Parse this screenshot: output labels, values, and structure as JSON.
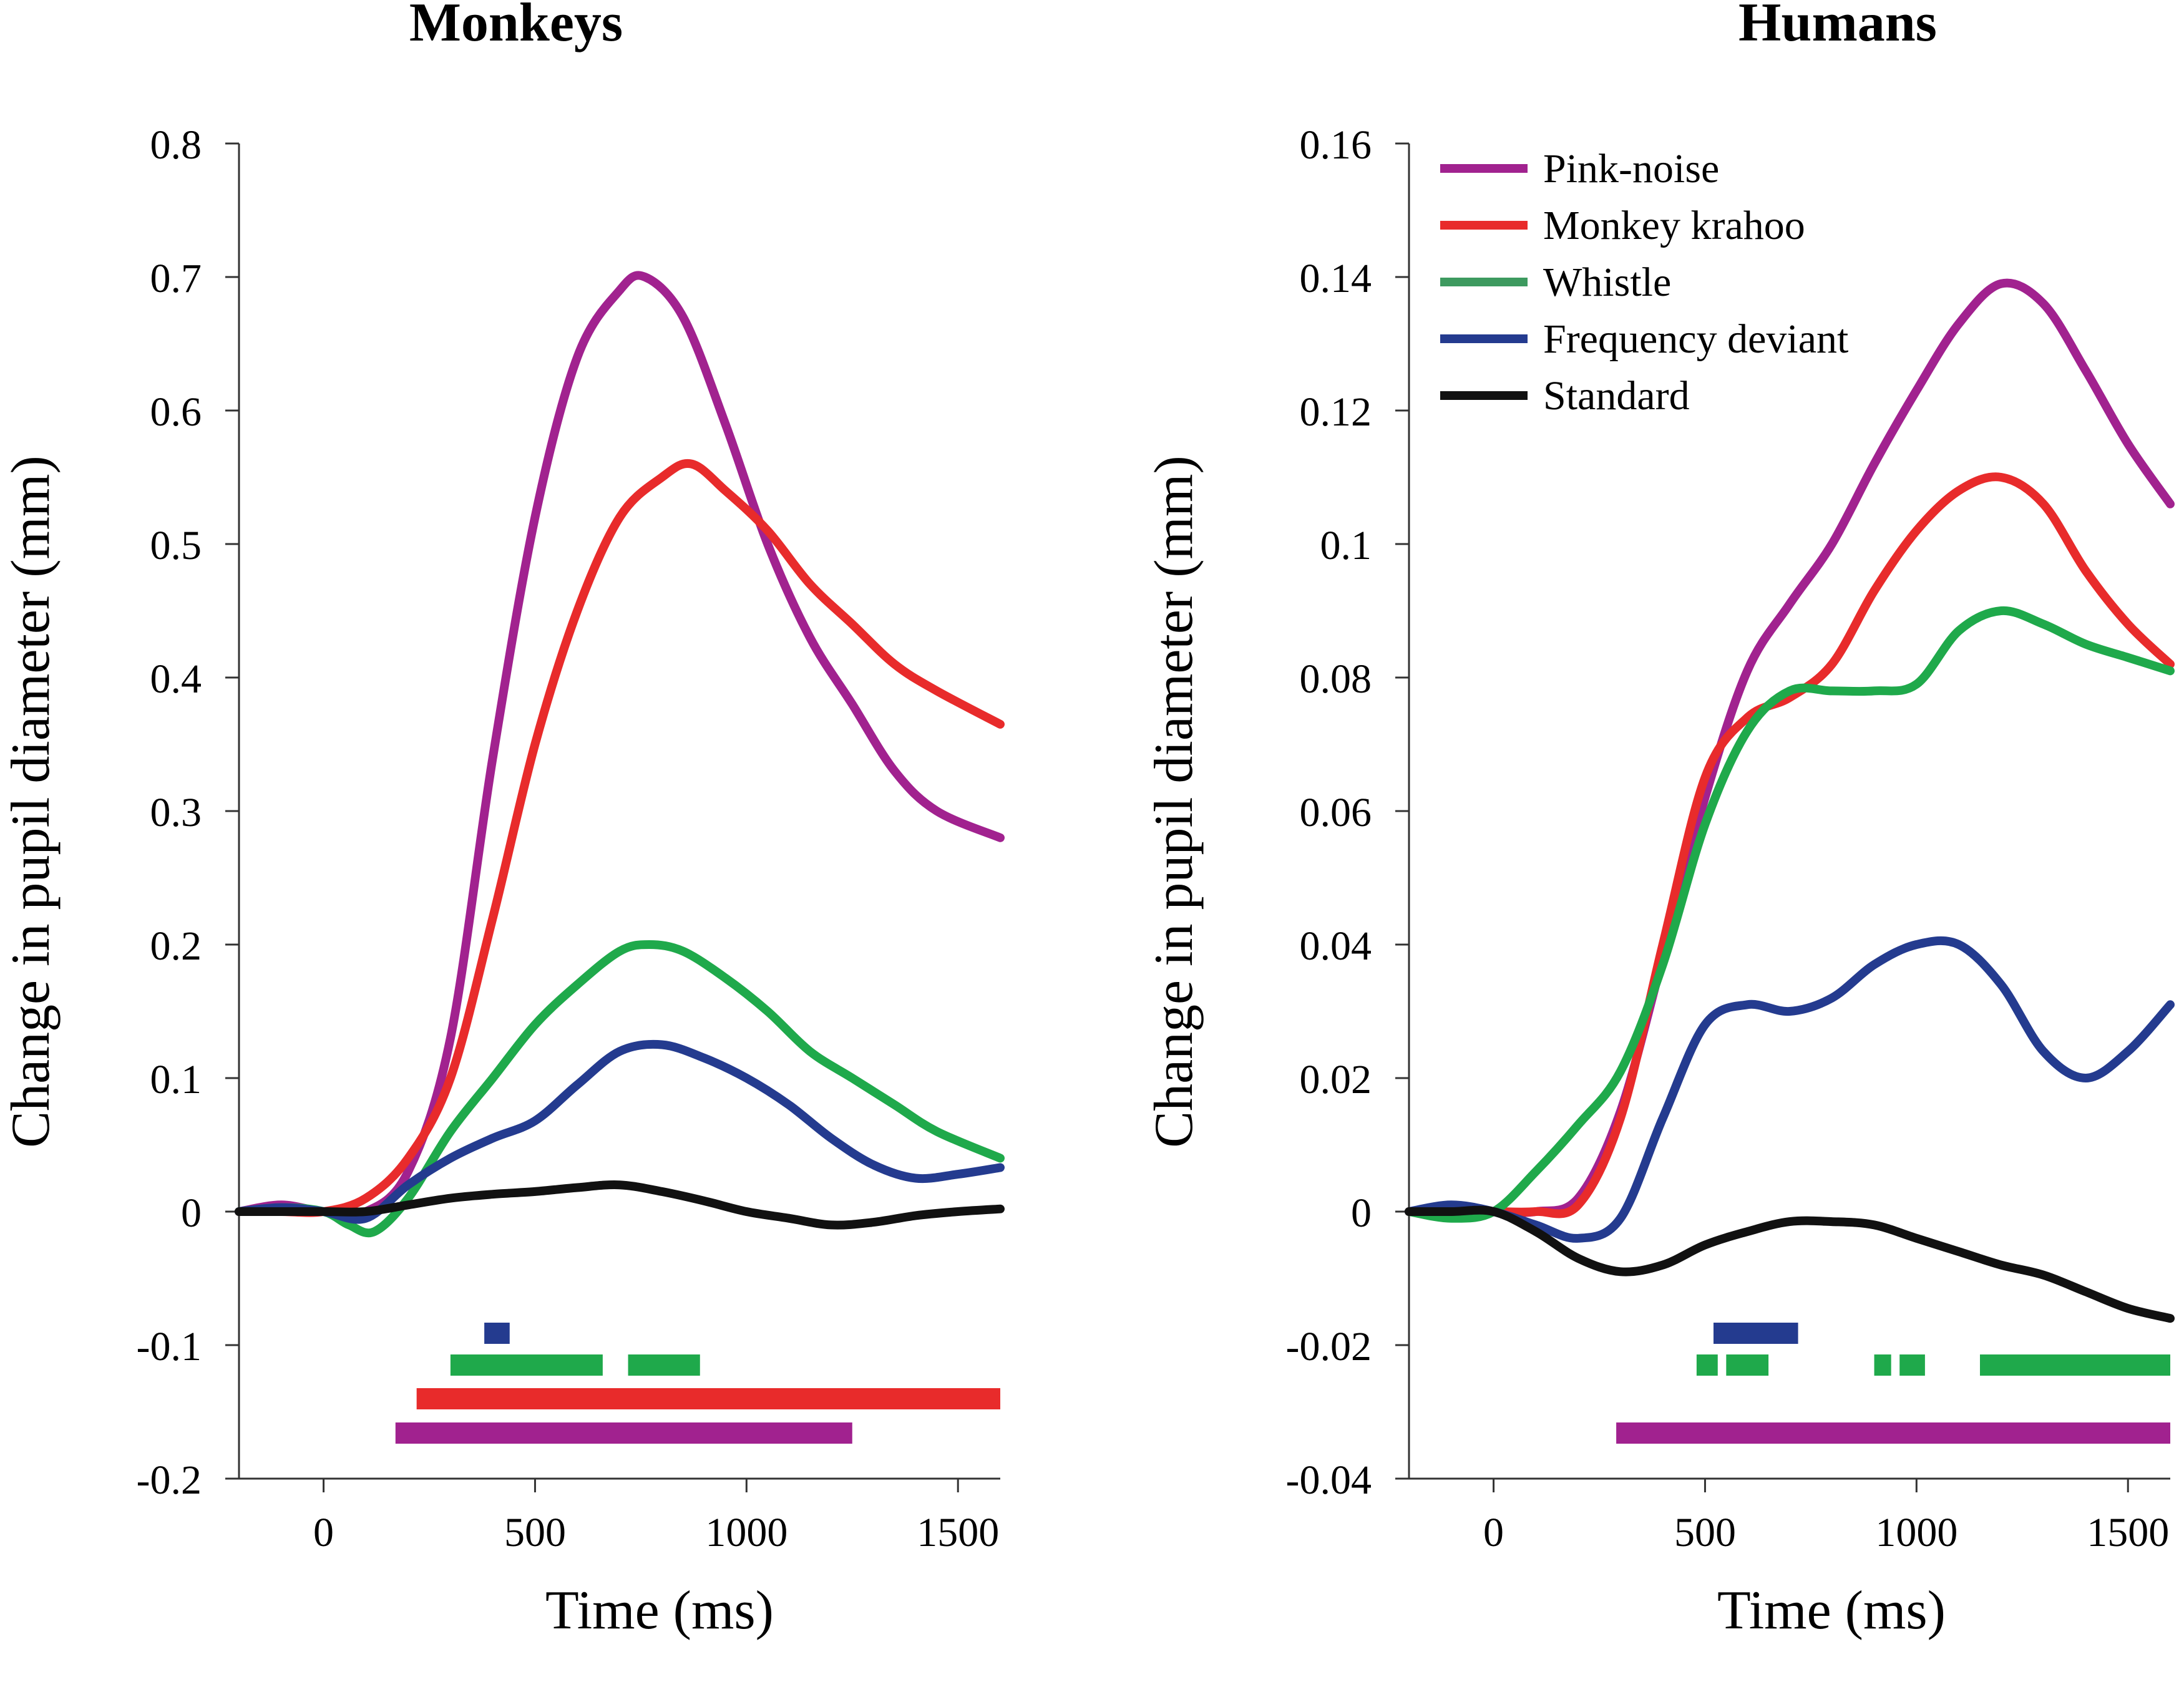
{
  "chart_data": [
    {
      "type": "line",
      "title": "Monkeys",
      "xlabel": "Time (ms)",
      "ylabel": "Change in pupil diameter (mm)",
      "xlim": [
        -200,
        1600
      ],
      "ylim": [
        -0.2,
        0.8
      ],
      "xticks": [
        0,
        500,
        1000,
        1500
      ],
      "xtick_labels": [
        "0",
        "500",
        "1000",
        "1500"
      ],
      "yticks": [
        -0.2,
        -0.1,
        0,
        0.1,
        0.2,
        0.3,
        0.4,
        0.5,
        0.6,
        0.7,
        0.8
      ],
      "ytick_labels": [
        "-0.2",
        "-0.1",
        "0",
        "0.1",
        "0.2",
        "0.3",
        "0.4",
        "0.5",
        "0.6",
        "0.7",
        "0.8"
      ],
      "series": [
        {
          "name": "Pink-noise",
          "color": "#a1228f",
          "x": [
            -200,
            -100,
            0,
            100,
            200,
            300,
            400,
            500,
            600,
            700,
            760,
            850,
            950,
            1050,
            1150,
            1250,
            1350,
            1450,
            1600
          ],
          "y": [
            0,
            0.005,
            0,
            0,
            0.03,
            0.13,
            0.34,
            0.52,
            0.64,
            0.69,
            0.7,
            0.67,
            0.59,
            0.5,
            0.43,
            0.38,
            0.33,
            0.3,
            0.28
          ]
        },
        {
          "name": "Monkey krahoo",
          "color": "#e82b2b",
          "x": [
            -200,
            -100,
            0,
            100,
            200,
            300,
            400,
            500,
            600,
            700,
            800,
            870,
            950,
            1050,
            1150,
            1250,
            1350,
            1450,
            1600
          ],
          "y": [
            0,
            0,
            0,
            0.01,
            0.04,
            0.1,
            0.22,
            0.35,
            0.45,
            0.52,
            0.55,
            0.56,
            0.54,
            0.51,
            0.47,
            0.44,
            0.41,
            0.39,
            0.365
          ]
        },
        {
          "name": "Whistle",
          "color": "#1fa94b",
          "x": [
            -200,
            -100,
            0,
            60,
            120,
            200,
            300,
            400,
            500,
            600,
            700,
            770,
            850,
            950,
            1050,
            1150,
            1250,
            1350,
            1450,
            1600
          ],
          "y": [
            0,
            0.003,
            0,
            -0.01,
            -0.015,
            0.01,
            0.06,
            0.1,
            0.14,
            0.17,
            0.195,
            0.2,
            0.195,
            0.175,
            0.15,
            0.12,
            0.1,
            0.08,
            0.06,
            0.04
          ]
        },
        {
          "name": "Frequency deviant",
          "color": "#243b8f",
          "x": [
            -200,
            -100,
            0,
            100,
            200,
            300,
            400,
            500,
            600,
            700,
            800,
            900,
            1000,
            1100,
            1200,
            1300,
            1400,
            1500,
            1600
          ],
          "y": [
            0,
            0.003,
            0,
            -0.005,
            0.02,
            0.04,
            0.055,
            0.068,
            0.095,
            0.12,
            0.125,
            0.115,
            0.1,
            0.08,
            0.055,
            0.035,
            0.025,
            0.028,
            0.033
          ]
        },
        {
          "name": "Standard",
          "color": "#111111",
          "x": [
            -200,
            -100,
            0,
            100,
            200,
            300,
            400,
            500,
            600,
            700,
            800,
            900,
            1000,
            1100,
            1200,
            1300,
            1400,
            1500,
            1600
          ],
          "y": [
            0,
            0,
            0,
            0,
            0.005,
            0.01,
            0.013,
            0.015,
            0.018,
            0.02,
            0.015,
            0.008,
            0,
            -0.005,
            -0.01,
            -0.008,
            -0.003,
            0,
            0.002
          ]
        }
      ],
      "significance_bars": [
        {
          "series": "Frequency deviant",
          "color": "#243b8f",
          "row": 1,
          "ranges": [
            [
              380,
              440
            ]
          ]
        },
        {
          "series": "Whistle",
          "color": "#1fa94b",
          "row": 2,
          "ranges": [
            [
              300,
              660
            ],
            [
              720,
              890
            ]
          ]
        },
        {
          "series": "Monkey krahoo",
          "color": "#e82b2b",
          "row": 3,
          "ranges": [
            [
              220,
              1600
            ]
          ]
        },
        {
          "series": "Pink-noise",
          "color": "#a1228f",
          "row": 4,
          "ranges": [
            [
              170,
              1250
            ]
          ]
        }
      ]
    },
    {
      "type": "line",
      "title": "Humans",
      "xlabel": "Time (ms)",
      "ylabel": "Change in pupil diameter (mm)",
      "xlim": [
        -200,
        1600
      ],
      "ylim": [
        -0.04,
        0.16
      ],
      "xticks": [
        0,
        500,
        1000,
        1500
      ],
      "xtick_labels": [
        "0",
        "500",
        "1000",
        "1500"
      ],
      "yticks": [
        -0.04,
        -0.02,
        0,
        0.02,
        0.04,
        0.06,
        0.08,
        0.1,
        0.12,
        0.14,
        0.16
      ],
      "ytick_labels": [
        "-0.04",
        "-0.02",
        "0",
        "0.02",
        "0.04",
        "0.06",
        "0.08",
        "0.1",
        "0.12",
        "0.14",
        "0.16"
      ],
      "legend": {
        "placement": "top-left",
        "entries": [
          {
            "label": "Pink-noise",
            "color": "#a1228f"
          },
          {
            "label": "Monkey krahoo",
            "color": "#e82b2b"
          },
          {
            "label": "Whistle",
            "color": "#3d9a5f"
          },
          {
            "label": "Frequency deviant",
            "color": "#243b8f"
          },
          {
            "label": "Standard",
            "color": "#111111"
          }
        ]
      },
      "series": [
        {
          "name": "Pink-noise",
          "color": "#a1228f",
          "x": [
            -200,
            -100,
            0,
            100,
            200,
            300,
            400,
            500,
            600,
            700,
            800,
            900,
            1000,
            1100,
            1200,
            1300,
            1400,
            1500,
            1600
          ],
          "y": [
            0,
            0,
            0,
            0,
            0.002,
            0.015,
            0.038,
            0.062,
            0.081,
            0.091,
            0.1,
            0.112,
            0.123,
            0.133,
            0.139,
            0.136,
            0.126,
            0.115,
            0.106
          ]
        },
        {
          "name": "Monkey krahoo",
          "color": "#e82b2b",
          "x": [
            -200,
            -100,
            0,
            100,
            200,
            300,
            400,
            500,
            600,
            700,
            800,
            900,
            1000,
            1100,
            1200,
            1300,
            1400,
            1500,
            1600
          ],
          "y": [
            0,
            0,
            0,
            0,
            0.001,
            0.014,
            0.04,
            0.065,
            0.074,
            0.077,
            0.082,
            0.093,
            0.102,
            0.108,
            0.11,
            0.106,
            0.096,
            0.088,
            0.082
          ]
        },
        {
          "name": "Whistle",
          "color": "#1fa94b",
          "x": [
            -200,
            -100,
            0,
            100,
            200,
            300,
            400,
            500,
            600,
            700,
            800,
            900,
            1000,
            1100,
            1200,
            1300,
            1400,
            1500,
            1600
          ],
          "y": [
            0,
            -0.001,
            0,
            0.006,
            0.013,
            0.021,
            0.037,
            0.058,
            0.072,
            0.078,
            0.078,
            0.078,
            0.079,
            0.087,
            0.09,
            0.088,
            0.085,
            0.083,
            0.081
          ]
        },
        {
          "name": "Frequency deviant",
          "color": "#243b8f",
          "x": [
            -200,
            -100,
            0,
            100,
            200,
            300,
            400,
            500,
            600,
            700,
            800,
            900,
            1000,
            1100,
            1200,
            1300,
            1400,
            1500,
            1600
          ],
          "y": [
            0,
            0.001,
            0,
            -0.002,
            -0.004,
            -0.001,
            0.014,
            0.028,
            0.031,
            0.03,
            0.032,
            0.037,
            0.04,
            0.04,
            0.034,
            0.024,
            0.02,
            0.024,
            0.031
          ]
        },
        {
          "name": "Standard",
          "color": "#111111",
          "x": [
            -200,
            -100,
            0,
            100,
            200,
            300,
            400,
            500,
            600,
            700,
            800,
            900,
            1000,
            1100,
            1200,
            1300,
            1400,
            1500,
            1600
          ],
          "y": [
            0,
            0,
            0,
            -0.003,
            -0.007,
            -0.009,
            -0.008,
            -0.005,
            -0.003,
            -0.0015,
            -0.0015,
            -0.002,
            -0.004,
            -0.006,
            -0.008,
            -0.0095,
            -0.012,
            -0.0145,
            -0.016
          ]
        }
      ],
      "significance_bars": [
        {
          "series": "Frequency deviant",
          "color": "#243b8f",
          "row": 1,
          "ranges": [
            [
              520,
              720
            ]
          ]
        },
        {
          "series": "Whistle",
          "color": "#1fa94b",
          "row": 2,
          "ranges": [
            [
              480,
              530
            ],
            [
              550,
              650
            ],
            [
              900,
              940
            ],
            [
              960,
              1020
            ],
            [
              1150,
              1600
            ]
          ]
        },
        {
          "series": "Pink-noise",
          "color": "#a1228f",
          "row": 4,
          "ranges": [
            [
              290,
              1600
            ]
          ]
        }
      ]
    }
  ]
}
